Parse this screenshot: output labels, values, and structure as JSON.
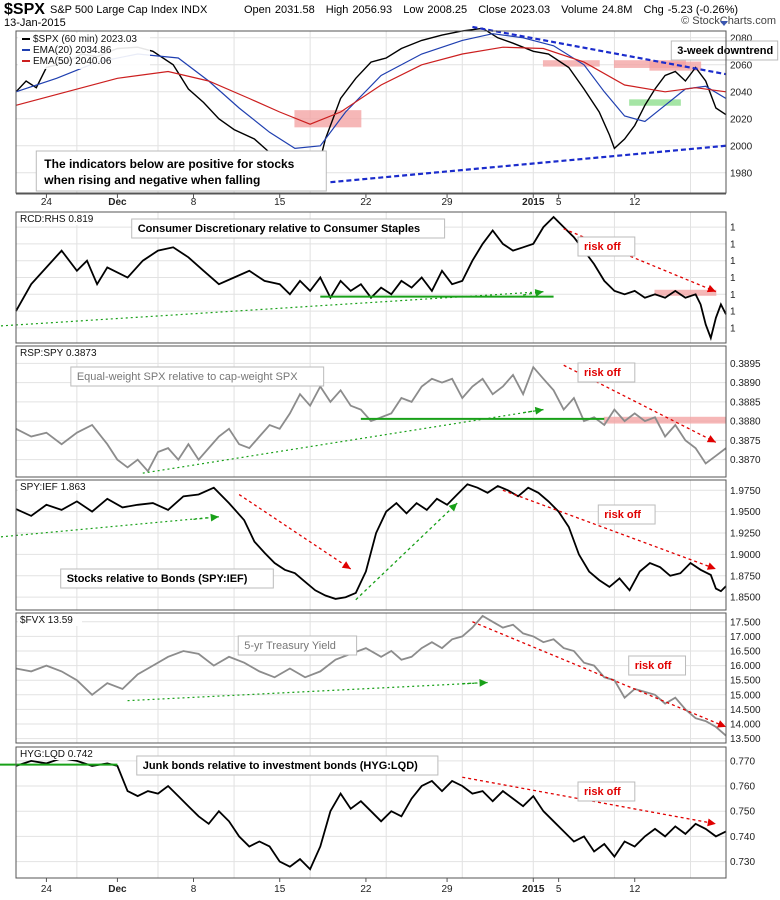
{
  "header": {
    "symbol": "$SPX",
    "name": "S&P 500 Large Cap Index",
    "exchange": "INDX",
    "date": "13-Jan-2015",
    "open_label": "Open",
    "open": "2031.58",
    "high_label": "High",
    "high": "2056.93",
    "low_label": "Low",
    "low": "2008.25",
    "close_label": "Close",
    "close": "2023.03",
    "volume_label": "Volume",
    "volume": "24.8M",
    "chg_label": "Chg",
    "chg": "-5.23 (-0.26%)",
    "brand": "© StockCharts.com"
  },
  "colors": {
    "price": "#000000",
    "ema20": "#1f3fb0",
    "ema50": "#cc1f1f",
    "trend_blue": "#1b2ccc",
    "green": "#18a018",
    "red": "#e00000",
    "grey": "#8c8c8c",
    "band_red": "#f4a0a0",
    "band_green": "#88dd88"
  },
  "x_axis": {
    "date_labels": [
      "24",
      "Dec",
      "8",
      "15",
      "22",
      "29",
      "2015",
      "5",
      "12"
    ],
    "bold_labels": [
      "Dec",
      "2015"
    ]
  },
  "chart_data": [
    {
      "type": "line",
      "panel": "spx",
      "legend": [
        "$SPX (60 min) 2023.03",
        "EMA(20) 2034.86",
        "EMA(50) 2040.06"
      ],
      "annotations": {
        "downtrend": "3-week downtrend",
        "note_line1": "The indicators below are positive for stocks",
        "note_line2": "when rising and negative when falling"
      },
      "ylim": [
        1965,
        2085
      ],
      "yticks": [
        1980,
        2000,
        2020,
        2040,
        2060,
        2080
      ],
      "series": [
        {
          "name": "$SPX (60 min)",
          "x": [
            0,
            2,
            4,
            6,
            8,
            10,
            13,
            16,
            20,
            24,
            27,
            31,
            34,
            37,
            40,
            43,
            47,
            50,
            53,
            56,
            58,
            60,
            61,
            64,
            67,
            70,
            73,
            76,
            80,
            84,
            88,
            92,
            95,
            98,
            102,
            105,
            109,
            112,
            115,
            117,
            118,
            120,
            122,
            124,
            126,
            128,
            130,
            132,
            134,
            136,
            138,
            140
          ],
          "values": [
            2040,
            2048,
            2043,
            2058,
            2060,
            2062,
            2068,
            2066,
            2072,
            2073,
            2070,
            2060,
            2042,
            2032,
            2020,
            2012,
            2005,
            1995,
            1985,
            1975,
            1972,
            1990,
            2005,
            2035,
            2050,
            2062,
            2065,
            2072,
            2078,
            2082,
            2085,
            2087,
            2080,
            2076,
            2070,
            2068,
            2058,
            2042,
            2025,
            2008,
            1998,
            2005,
            2015,
            2030,
            2042,
            2052,
            2055,
            2048,
            2058,
            2048,
            2028,
            2023
          ]
        },
        {
          "name": "EMA(20)",
          "x": [
            0,
            8,
            16,
            24,
            32,
            38,
            44,
            50,
            55,
            60,
            65,
            72,
            80,
            88,
            94,
            100,
            106,
            112,
            116,
            120,
            124,
            128,
            132,
            136,
            140
          ],
          "values": [
            2040,
            2050,
            2062,
            2068,
            2065,
            2048,
            2028,
            2010,
            1998,
            2000,
            2025,
            2052,
            2068,
            2078,
            2083,
            2080,
            2074,
            2060,
            2040,
            2022,
            2018,
            2030,
            2042,
            2044,
            2035
          ]
        },
        {
          "name": "EMA(50)",
          "x": [
            0,
            10,
            20,
            30,
            38,
            46,
            52,
            58,
            64,
            72,
            80,
            88,
            96,
            104,
            112,
            120,
            128,
            134,
            140
          ],
          "values": [
            2030,
            2040,
            2050,
            2055,
            2048,
            2035,
            2025,
            2016,
            2025,
            2045,
            2060,
            2068,
            2073,
            2072,
            2062,
            2045,
            2040,
            2043,
            2040
          ]
        }
      ]
    },
    {
      "type": "line",
      "panel": "rcd",
      "title": "RCD:RHS 0.819",
      "annotations": {
        "label": "Consumer Discretionary relative to Consumer Staples",
        "risk": "risk off"
      },
      "ylim": [
        0.8105,
        0.8495
      ],
      "yticks": [
        0.815,
        0.82,
        0.825,
        0.83,
        0.835,
        0.84,
        0.845
      ],
      "series": [
        {
          "name": "RCD:RHS",
          "x": [
            0,
            3,
            6,
            9,
            12,
            14,
            16,
            18,
            22,
            25,
            28,
            31,
            34,
            37,
            40,
            43,
            46,
            49,
            52,
            54,
            56,
            58,
            60,
            62,
            64,
            66,
            68,
            70,
            72,
            74,
            76,
            78,
            80,
            82,
            84,
            86,
            88,
            90,
            92,
            94,
            96,
            98,
            100,
            102,
            104,
            106,
            108,
            110,
            112,
            114,
            116,
            118,
            120,
            122,
            124,
            126,
            128,
            130,
            132,
            134,
            135,
            136,
            137,
            138,
            139,
            140
          ],
          "values": [
            0.82,
            0.828,
            0.833,
            0.838,
            0.832,
            0.835,
            0.828,
            0.833,
            0.83,
            0.835,
            0.838,
            0.839,
            0.836,
            0.832,
            0.828,
            0.83,
            0.832,
            0.829,
            0.828,
            0.825,
            0.829,
            0.826,
            0.83,
            0.824,
            0.829,
            0.826,
            0.828,
            0.824,
            0.827,
            0.825,
            0.829,
            0.827,
            0.83,
            0.826,
            0.832,
            0.828,
            0.829,
            0.835,
            0.84,
            0.844,
            0.84,
            0.838,
            0.839,
            0.84,
            0.845,
            0.848,
            0.845,
            0.842,
            0.838,
            0.834,
            0.829,
            0.826,
            0.825,
            0.826,
            0.824,
            0.825,
            0.824,
            0.826,
            0.824,
            0.825,
            0.822,
            0.816,
            0.812,
            0.818,
            0.822,
            0.819
          ]
        }
      ]
    },
    {
      "type": "line",
      "panel": "rsp",
      "title": "RSP:SPY 0.3873",
      "annotations": {
        "label": "Equal-weight SPX relative to cap-weight SPX",
        "risk": "risk off"
      },
      "ylim": [
        0.38655,
        0.38995
      ],
      "yticks": [
        0.387,
        0.3875,
        0.388,
        0.3885,
        0.389,
        0.3895
      ],
      "series": [
        {
          "name": "RSP:SPY",
          "x": [
            0,
            3,
            6,
            9,
            12,
            15,
            18,
            20,
            22,
            24,
            26,
            28,
            30,
            32,
            34,
            36,
            38,
            40,
            42,
            44,
            46,
            48,
            50,
            52,
            54,
            56,
            58,
            60,
            62,
            64,
            66,
            68,
            70,
            72,
            74,
            76,
            78,
            80,
            82,
            84,
            86,
            88,
            90,
            92,
            94,
            96,
            98,
            100,
            102,
            104,
            106,
            108,
            110,
            112,
            114,
            116,
            118,
            120,
            122,
            124,
            126,
            128,
            130,
            132,
            134,
            136,
            138,
            140
          ],
          "values": [
            0.3878,
            0.3876,
            0.3877,
            0.3874,
            0.3877,
            0.3879,
            0.3874,
            0.387,
            0.3868,
            0.387,
            0.3867,
            0.3872,
            0.3873,
            0.387,
            0.3874,
            0.387,
            0.3873,
            0.3876,
            0.3878,
            0.3874,
            0.3873,
            0.3876,
            0.3879,
            0.3878,
            0.3882,
            0.3887,
            0.3884,
            0.3889,
            0.3885,
            0.3888,
            0.3884,
            0.3883,
            0.388,
            0.3881,
            0.3882,
            0.3886,
            0.3885,
            0.3889,
            0.3891,
            0.389,
            0.3891,
            0.3886,
            0.3889,
            0.3891,
            0.3887,
            0.3889,
            0.3892,
            0.3887,
            0.3894,
            0.3891,
            0.3888,
            0.3883,
            0.3886,
            0.388,
            0.3881,
            0.3879,
            0.3883,
            0.388,
            0.3882,
            0.388,
            0.3881,
            0.3876,
            0.3879,
            0.3875,
            0.3873,
            0.3869,
            0.3871,
            0.3873
          ]
        }
      ]
    },
    {
      "type": "line",
      "panel": "spyief",
      "title": "SPY:IEF 1.863",
      "annotations": {
        "label": "Stocks relative to Bonds (SPY:IEF)",
        "risk": "risk off"
      },
      "ylim": [
        1.835,
        1.987
      ],
      "yticks": [
        1.85,
        1.875,
        1.9,
        1.925,
        1.95,
        1.975
      ],
      "series": [
        {
          "name": "SPY:IEF",
          "x": [
            0,
            3,
            6,
            9,
            12,
            15,
            18,
            21,
            24,
            27,
            30,
            33,
            36,
            39,
            42,
            45,
            47,
            49,
            51,
            53,
            55,
            57,
            59,
            61,
            63,
            65,
            67,
            69,
            71,
            73,
            75,
            77,
            79,
            81,
            83,
            85,
            87,
            89,
            91,
            93,
            95,
            97,
            99,
            101,
            103,
            105,
            107,
            109,
            111,
            113,
            115,
            117,
            119,
            121,
            123,
            125,
            127,
            129,
            131,
            133,
            135,
            137,
            138,
            139,
            140
          ],
          "values": [
            1.953,
            1.945,
            1.958,
            1.952,
            1.962,
            1.95,
            1.965,
            1.955,
            1.958,
            1.96,
            1.952,
            1.968,
            1.97,
            1.978,
            1.96,
            1.94,
            1.915,
            1.902,
            1.89,
            1.882,
            1.878,
            1.868,
            1.858,
            1.852,
            1.848,
            1.85,
            1.855,
            1.88,
            1.925,
            1.95,
            1.96,
            1.948,
            1.96,
            1.952,
            1.965,
            1.958,
            1.97,
            1.982,
            1.978,
            1.972,
            1.98,
            1.975,
            1.968,
            1.978,
            1.972,
            1.962,
            1.95,
            1.932,
            1.9,
            1.88,
            1.87,
            1.862,
            1.872,
            1.858,
            1.88,
            1.89,
            1.885,
            1.875,
            1.878,
            1.89,
            1.882,
            1.876,
            1.86,
            1.857,
            1.863
          ]
        }
      ]
    },
    {
      "type": "line",
      "panel": "fvx",
      "title": "$FVX 13.59",
      "annotations": {
        "label": "5-yr Treasury Yield",
        "risk": "risk off"
      },
      "ylim": [
        13.35,
        17.8
      ],
      "yticks": [
        13.5,
        14.0,
        14.5,
        15.0,
        15.5,
        16.0,
        16.5,
        17.0,
        17.5
      ],
      "series": [
        {
          "name": "$FVX",
          "x": [
            0,
            3,
            6,
            9,
            12,
            15,
            18,
            21,
            24,
            27,
            30,
            33,
            36,
            39,
            42,
            45,
            48,
            51,
            54,
            57,
            60,
            63,
            66,
            69,
            72,
            74,
            76,
            78,
            80,
            82,
            84,
            86,
            88,
            90,
            92,
            94,
            96,
            98,
            100,
            102,
            104,
            106,
            108,
            110,
            112,
            114,
            116,
            118,
            120,
            122,
            124,
            126,
            128,
            130,
            132,
            134,
            136,
            138,
            140
          ],
          "values": [
            15.9,
            15.8,
            16.0,
            15.8,
            15.5,
            15.0,
            15.4,
            15.2,
            15.7,
            16.0,
            16.3,
            16.5,
            16.4,
            16.0,
            16.3,
            16.1,
            15.8,
            15.6,
            15.9,
            15.6,
            15.8,
            16.2,
            16.4,
            16.6,
            16.3,
            16.5,
            16.2,
            16.3,
            16.6,
            16.8,
            16.6,
            16.9,
            17.0,
            17.3,
            17.7,
            17.5,
            17.3,
            17.4,
            17.1,
            17.0,
            16.8,
            16.9,
            16.6,
            16.5,
            16.1,
            16.0,
            15.6,
            15.5,
            14.9,
            15.2,
            15.1,
            15.0,
            14.7,
            14.9,
            14.5,
            14.2,
            14.1,
            13.9,
            13.6
          ]
        }
      ]
    },
    {
      "type": "line",
      "panel": "hyglqd",
      "title": "HYG:LQD 0.742",
      "annotations": {
        "label": "Junk bonds relative to investment bonds (HYG:LQD)",
        "risk": "risk off"
      },
      "ylim": [
        0.7235,
        0.7755
      ],
      "yticks": [
        0.73,
        0.74,
        0.75,
        0.76,
        0.77
      ],
      "series": [
        {
          "name": "HYG:LQD",
          "x": [
            0,
            3,
            6,
            9,
            12,
            15,
            18,
            20,
            22,
            24,
            26,
            28,
            30,
            32,
            34,
            36,
            38,
            40,
            42,
            44,
            46,
            48,
            50,
            52,
            54,
            56,
            58,
            60,
            62,
            64,
            66,
            68,
            70,
            72,
            74,
            76,
            78,
            80,
            82,
            84,
            86,
            88,
            90,
            92,
            94,
            96,
            98,
            100,
            102,
            104,
            106,
            108,
            110,
            112,
            114,
            116,
            118,
            120,
            122,
            124,
            126,
            128,
            130,
            132,
            134,
            136,
            138,
            140
          ],
          "values": [
            0.768,
            0.77,
            0.769,
            0.771,
            0.77,
            0.768,
            0.769,
            0.768,
            0.758,
            0.756,
            0.758,
            0.757,
            0.76,
            0.756,
            0.752,
            0.748,
            0.745,
            0.75,
            0.746,
            0.74,
            0.736,
            0.738,
            0.736,
            0.73,
            0.728,
            0.731,
            0.727,
            0.736,
            0.75,
            0.757,
            0.751,
            0.754,
            0.75,
            0.746,
            0.75,
            0.748,
            0.755,
            0.76,
            0.762,
            0.758,
            0.762,
            0.76,
            0.757,
            0.758,
            0.754,
            0.758,
            0.755,
            0.752,
            0.756,
            0.75,
            0.746,
            0.742,
            0.738,
            0.74,
            0.734,
            0.737,
            0.732,
            0.738,
            0.736,
            0.74,
            0.743,
            0.74,
            0.744,
            0.741,
            0.745,
            0.743,
            0.74,
            0.742
          ]
        }
      ]
    }
  ]
}
